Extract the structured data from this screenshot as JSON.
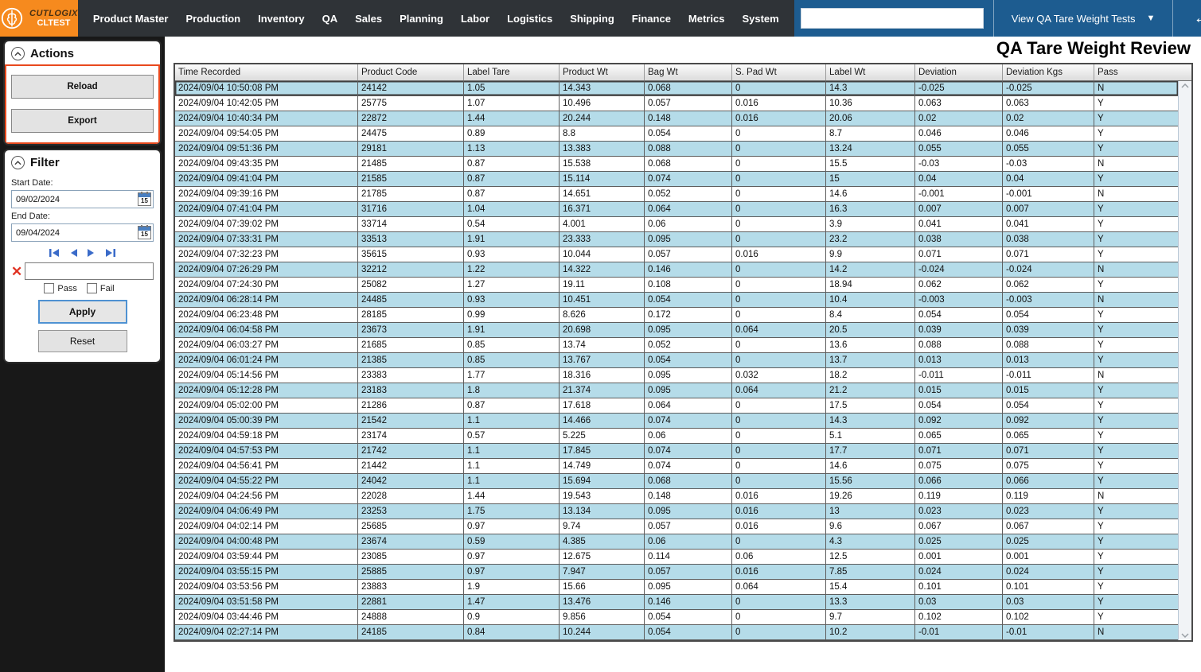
{
  "app": {
    "brand": "CUTLOGIX",
    "env": "CLTEST",
    "menu": [
      "Product Master",
      "Production",
      "Inventory",
      "QA",
      "Sales",
      "Planning",
      "Labor",
      "Logistics",
      "Shipping",
      "Finance",
      "Metrics",
      "System"
    ],
    "search_value": "",
    "view_selector": "View QA Tare Weight Tests",
    "icons": {
      "dropdown": "▼",
      "back": "←",
      "forward": "→",
      "close": "✕",
      "star": "☆"
    }
  },
  "actions_panel": {
    "title": "Actions",
    "reload": "Reload",
    "export": "Export"
  },
  "filter_panel": {
    "title": "Filter",
    "start_date_label": "Start Date:",
    "start_date": "09/02/2024",
    "end_date_label": "End Date:",
    "end_date": "09/04/2024",
    "calendar_day": "15",
    "search_value": "",
    "pass_label": "Pass",
    "fail_label": "Fail",
    "apply": "Apply",
    "reset": "Reset"
  },
  "page_title": "QA Tare Weight Review",
  "table": {
    "columns": [
      "Time Recorded",
      "Product Code",
      "Label Tare",
      "Product Wt",
      "Bag Wt",
      "S. Pad Wt",
      "Label Wt",
      "Deviation",
      "Deviation Kgs",
      "Pass"
    ],
    "rows": [
      [
        "2024/09/04 10:50:08 PM",
        "24142",
        "1.05",
        "14.343",
        "0.068",
        "0",
        "14.3",
        "-0.025",
        "-0.025",
        "N"
      ],
      [
        "2024/09/04 10:42:05 PM",
        "25775",
        "1.07",
        "10.496",
        "0.057",
        "0.016",
        "10.36",
        "0.063",
        "0.063",
        "Y"
      ],
      [
        "2024/09/04 10:40:34 PM",
        "22872",
        "1.44",
        "20.244",
        "0.148",
        "0.016",
        "20.06",
        "0.02",
        "0.02",
        "Y"
      ],
      [
        "2024/09/04 09:54:05 PM",
        "24475",
        "0.89",
        "8.8",
        "0.054",
        "0",
        "8.7",
        "0.046",
        "0.046",
        "Y"
      ],
      [
        "2024/09/04 09:51:36 PM",
        "29181",
        "1.13",
        "13.383",
        "0.088",
        "0",
        "13.24",
        "0.055",
        "0.055",
        "Y"
      ],
      [
        "2024/09/04 09:43:35 PM",
        "21485",
        "0.87",
        "15.538",
        "0.068",
        "0",
        "15.5",
        "-0.03",
        "-0.03",
        "N"
      ],
      [
        "2024/09/04 09:41:04 PM",
        "21585",
        "0.87",
        "15.114",
        "0.074",
        "0",
        "15",
        "0.04",
        "0.04",
        "Y"
      ],
      [
        "2024/09/04 09:39:16 PM",
        "21785",
        "0.87",
        "14.651",
        "0.052",
        "0",
        "14.6",
        "-0.001",
        "-0.001",
        "N"
      ],
      [
        "2024/09/04 07:41:04 PM",
        "31716",
        "1.04",
        "16.371",
        "0.064",
        "0",
        "16.3",
        "0.007",
        "0.007",
        "Y"
      ],
      [
        "2024/09/04 07:39:02 PM",
        "33714",
        "0.54",
        "4.001",
        "0.06",
        "0",
        "3.9",
        "0.041",
        "0.041",
        "Y"
      ],
      [
        "2024/09/04 07:33:31 PM",
        "33513",
        "1.91",
        "23.333",
        "0.095",
        "0",
        "23.2",
        "0.038",
        "0.038",
        "Y"
      ],
      [
        "2024/09/04 07:32:23 PM",
        "35615",
        "0.93",
        "10.044",
        "0.057",
        "0.016",
        "9.9",
        "0.071",
        "0.071",
        "Y"
      ],
      [
        "2024/09/04 07:26:29 PM",
        "32212",
        "1.22",
        "14.322",
        "0.146",
        "0",
        "14.2",
        "-0.024",
        "-0.024",
        "N"
      ],
      [
        "2024/09/04 07:24:30 PM",
        "25082",
        "1.27",
        "19.11",
        "0.108",
        "0",
        "18.94",
        "0.062",
        "0.062",
        "Y"
      ],
      [
        "2024/09/04 06:28:14 PM",
        "24485",
        "0.93",
        "10.451",
        "0.054",
        "0",
        "10.4",
        "-0.003",
        "-0.003",
        "N"
      ],
      [
        "2024/09/04 06:23:48 PM",
        "28185",
        "0.99",
        "8.626",
        "0.172",
        "0",
        "8.4",
        "0.054",
        "0.054",
        "Y"
      ],
      [
        "2024/09/04 06:04:58 PM",
        "23673",
        "1.91",
        "20.698",
        "0.095",
        "0.064",
        "20.5",
        "0.039",
        "0.039",
        "Y"
      ],
      [
        "2024/09/04 06:03:27 PM",
        "21685",
        "0.85",
        "13.74",
        "0.052",
        "0",
        "13.6",
        "0.088",
        "0.088",
        "Y"
      ],
      [
        "2024/09/04 06:01:24 PM",
        "21385",
        "0.85",
        "13.767",
        "0.054",
        "0",
        "13.7",
        "0.013",
        "0.013",
        "Y"
      ],
      [
        "2024/09/04 05:14:56 PM",
        "23383",
        "1.77",
        "18.316",
        "0.095",
        "0.032",
        "18.2",
        "-0.011",
        "-0.011",
        "N"
      ],
      [
        "2024/09/04 05:12:28 PM",
        "23183",
        "1.8",
        "21.374",
        "0.095",
        "0.064",
        "21.2",
        "0.015",
        "0.015",
        "Y"
      ],
      [
        "2024/09/04 05:02:00 PM",
        "21286",
        "0.87",
        "17.618",
        "0.064",
        "0",
        "17.5",
        "0.054",
        "0.054",
        "Y"
      ],
      [
        "2024/09/04 05:00:39 PM",
        "21542",
        "1.1",
        "14.466",
        "0.074",
        "0",
        "14.3",
        "0.092",
        "0.092",
        "Y"
      ],
      [
        "2024/09/04 04:59:18 PM",
        "23174",
        "0.57",
        "5.225",
        "0.06",
        "0",
        "5.1",
        "0.065",
        "0.065",
        "Y"
      ],
      [
        "2024/09/04 04:57:53 PM",
        "21742",
        "1.1",
        "17.845",
        "0.074",
        "0",
        "17.7",
        "0.071",
        "0.071",
        "Y"
      ],
      [
        "2024/09/04 04:56:41 PM",
        "21442",
        "1.1",
        "14.749",
        "0.074",
        "0",
        "14.6",
        "0.075",
        "0.075",
        "Y"
      ],
      [
        "2024/09/04 04:55:22 PM",
        "24042",
        "1.1",
        "15.694",
        "0.068",
        "0",
        "15.56",
        "0.066",
        "0.066",
        "Y"
      ],
      [
        "2024/09/04 04:24:56 PM",
        "22028",
        "1.44",
        "19.543",
        "0.148",
        "0.016",
        "19.26",
        "0.119",
        "0.119",
        "N"
      ],
      [
        "2024/09/04 04:06:49 PM",
        "23253",
        "1.75",
        "13.134",
        "0.095",
        "0.016",
        "13",
        "0.023",
        "0.023",
        "Y"
      ],
      [
        "2024/09/04 04:02:14 PM",
        "25685",
        "0.97",
        "9.74",
        "0.057",
        "0.016",
        "9.6",
        "0.067",
        "0.067",
        "Y"
      ],
      [
        "2024/09/04 04:00:48 PM",
        "23674",
        "0.59",
        "4.385",
        "0.06",
        "0",
        "4.3",
        "0.025",
        "0.025",
        "Y"
      ],
      [
        "2024/09/04 03:59:44 PM",
        "23085",
        "0.97",
        "12.675",
        "0.114",
        "0.06",
        "12.5",
        "0.001",
        "0.001",
        "Y"
      ],
      [
        "2024/09/04 03:55:15 PM",
        "25885",
        "0.97",
        "7.947",
        "0.057",
        "0.016",
        "7.85",
        "0.024",
        "0.024",
        "Y"
      ],
      [
        "2024/09/04 03:53:56 PM",
        "23883",
        "1.9",
        "15.66",
        "0.095",
        "0.064",
        "15.4",
        "0.101",
        "0.101",
        "Y"
      ],
      [
        "2024/09/04 03:51:58 PM",
        "22881",
        "1.47",
        "13.476",
        "0.146",
        "0",
        "13.3",
        "0.03",
        "0.03",
        "Y"
      ],
      [
        "2024/09/04 03:44:46 PM",
        "24888",
        "0.9",
        "9.856",
        "0.054",
        "0",
        "9.7",
        "0.102",
        "0.102",
        "Y"
      ],
      [
        "2024/09/04 02:27:14 PM",
        "24185",
        "0.84",
        "10.244",
        "0.054",
        "0",
        "10.2",
        "-0.01",
        "-0.01",
        "N"
      ]
    ]
  },
  "colors": {
    "topbar_bg": "#2f3337",
    "brand_orange": "#f68a1e",
    "titlebar_blue": "#1d5c90",
    "row_alt_blue": "#b5dce9",
    "actions_outline": "#e8491d",
    "grid_border": "#5e5e5e"
  }
}
